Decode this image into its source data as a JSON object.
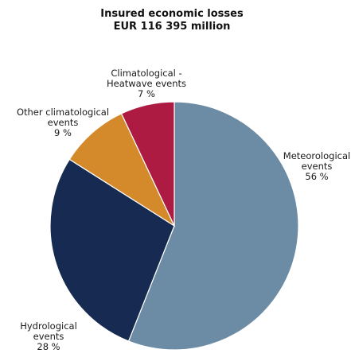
{
  "chart_data": {
    "type": "pie",
    "title": "Insured economic losses",
    "subtitle": "EUR 116 395 million",
    "unit": "%",
    "slices": [
      {
        "label_lines": [
          "Meteorological",
          "events"
        ],
        "value": 56,
        "value_text": "56 %",
        "color": "#6c8ca5"
      },
      {
        "label_lines": [
          "Hydrological",
          "events"
        ],
        "value": 28,
        "value_text": "28 %",
        "color": "#172b52"
      },
      {
        "label_lines": [
          "Other climatological",
          "events"
        ],
        "value": 9,
        "value_text": "9 %",
        "color": "#d4892a"
      },
      {
        "label_lines": [
          "Climatological -",
          "Heatwave events"
        ],
        "value": 7,
        "value_text": "7 %",
        "color": "#ad1b42"
      }
    ],
    "start_angle_deg": 0,
    "direction": "clockwise",
    "legend": "none"
  }
}
